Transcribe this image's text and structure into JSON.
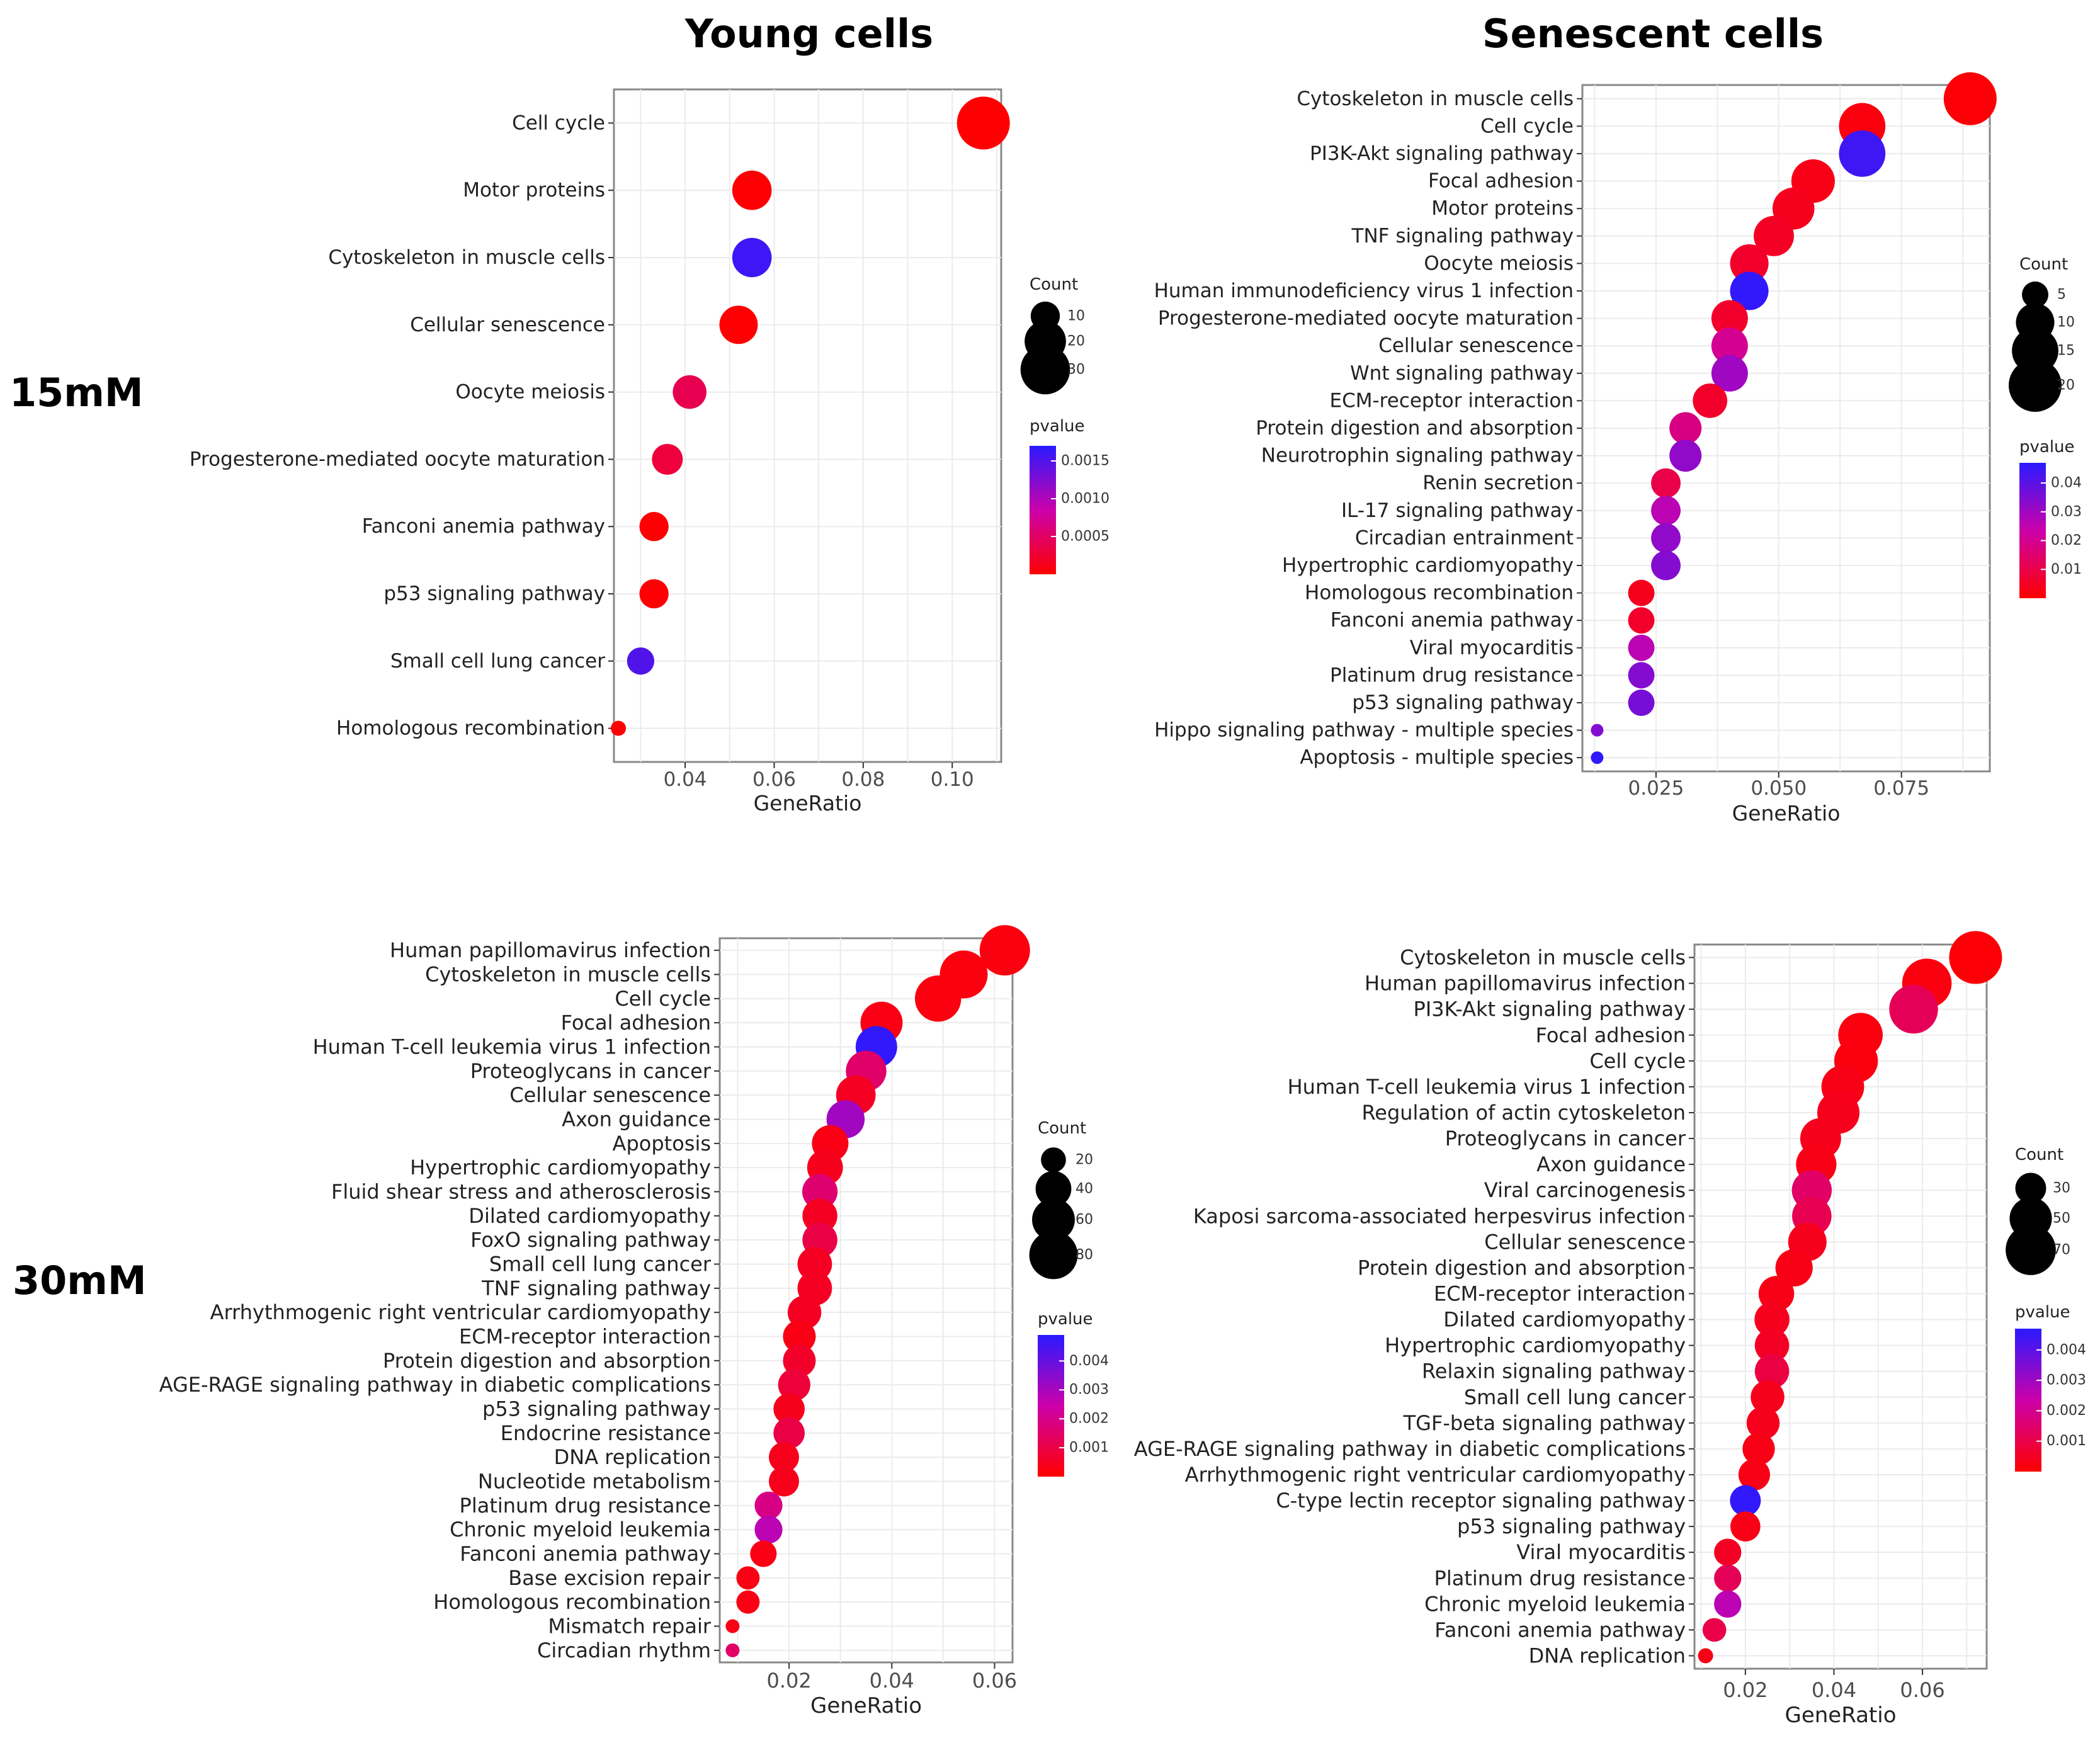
{
  "figure": {
    "col_titles": [
      "Young cells",
      "Senescent cells"
    ],
    "row_labels": [
      "15mM",
      "30mM"
    ]
  },
  "colors": {
    "low": "#ff0000",
    "mid": "#cc00aa",
    "high": "#2a1aff",
    "grid": "#ebebeb",
    "axis": "#888888"
  },
  "chart_data": [
    {
      "id": "young-15mM",
      "type": "scatter",
      "panel": "Young cells 15mM",
      "xlabel": "GeneRatio",
      "ylabel": "",
      "xlim": [
        0.024,
        0.111
      ],
      "xticks": [
        0.04,
        0.06,
        0.08,
        0.1
      ],
      "xtick_labels": [
        "0.04",
        "0.06",
        "0.08",
        "0.10"
      ],
      "pathways": [
        "Cell cycle",
        "Motor proteins",
        "Cytoskeleton in muscle cells",
        "Cellular senescence",
        "Oocyte meiosis",
        "Progesterone-mediated oocyte maturation",
        "Fanconi anemia pathway",
        "p53 signaling pathway",
        "Small cell lung cancer",
        "Homologous recombination"
      ],
      "gene_ratio": [
        0.107,
        0.055,
        0.055,
        0.052,
        0.041,
        0.036,
        0.033,
        0.033,
        0.03,
        0.025
      ],
      "count": [
        35,
        18,
        18,
        17,
        13,
        11,
        10,
        10,
        9,
        6
      ],
      "pvalue": [
        1e-05,
        2e-05,
        0.0016,
        1e-05,
        0.0004,
        0.0003,
        2e-05,
        2e-05,
        0.0015,
        1e-05
      ],
      "count_legend": {
        "title": "Count",
        "breaks": [
          10,
          20,
          30
        ],
        "labels": [
          "10",
          "20",
          "30"
        ]
      },
      "pvalue_legend": {
        "title": "pvalue",
        "range": [
          0,
          0.0017
        ],
        "breaks": [
          0.0015,
          0.001,
          0.0005
        ],
        "labels": [
          "0.0015",
          "0.0010",
          "0.0005"
        ]
      }
    },
    {
      "id": "senescent-15mM",
      "type": "scatter",
      "panel": "Senescent cells 15mM",
      "xlabel": "GeneRatio",
      "ylabel": "",
      "xlim": [
        0.01,
        0.093
      ],
      "xticks": [
        0.025,
        0.05,
        0.075
      ],
      "xtick_labels": [
        "0.025",
        "0.050",
        "0.075"
      ],
      "pathways": [
        "Cytoskeleton in muscle cells",
        "Cell cycle",
        "PI3K-Akt signaling pathway",
        "Focal adhesion",
        "Motor proteins",
        "TNF signaling pathway",
        "Oocyte meiosis",
        "Human immunodeficiency virus 1 infection",
        "Progesterone-mediated oocyte maturation",
        "Cellular senescence",
        "Wnt signaling pathway",
        "ECM-receptor interaction",
        "Protein digestion and absorption",
        "Neurotrophin signaling pathway",
        "Renin secretion",
        "IL-17 signaling pathway",
        "Circadian entrainment",
        "Hypertrophic cardiomyopathy",
        "Homologous recombination",
        "Fanconi anemia pathway",
        "Viral myocarditis",
        "Platinum drug resistance",
        "p53 signaling pathway",
        "Hippo signaling pathway - multiple species",
        "Apoptosis - multiple species"
      ],
      "gene_ratio": [
        0.089,
        0.067,
        0.067,
        0.057,
        0.053,
        0.049,
        0.044,
        0.044,
        0.04,
        0.04,
        0.04,
        0.036,
        0.031,
        0.031,
        0.027,
        0.027,
        0.027,
        0.027,
        0.022,
        0.022,
        0.022,
        0.022,
        0.022,
        0.013,
        0.013
      ],
      "count": [
        20,
        15,
        15,
        13,
        12,
        11,
        10,
        10,
        9,
        9,
        9,
        8,
        7,
        7,
        6,
        6,
        6,
        6,
        5,
        5,
        5,
        5,
        5,
        3,
        3
      ],
      "pvalue": [
        0.001,
        0.002,
        0.044,
        0.003,
        0.004,
        0.005,
        0.006,
        0.046,
        0.006,
        0.02,
        0.03,
        0.006,
        0.018,
        0.032,
        0.01,
        0.026,
        0.032,
        0.034,
        0.004,
        0.006,
        0.026,
        0.034,
        0.036,
        0.034,
        0.046
      ],
      "count_legend": {
        "title": "Count",
        "breaks": [
          5,
          10,
          15,
          20
        ],
        "labels": [
          "5",
          "10",
          "15",
          "20"
        ]
      },
      "pvalue_legend": {
        "title": "pvalue",
        "range": [
          0,
          0.047
        ],
        "breaks": [
          0.04,
          0.03,
          0.02,
          0.01
        ],
        "labels": [
          "0.04",
          "0.03",
          "0.02",
          "0.01"
        ]
      }
    },
    {
      "id": "young-30mM",
      "type": "scatter",
      "panel": "Young cells 30mM",
      "xlabel": "GeneRatio",
      "ylabel": "",
      "xlim": [
        0.0065,
        0.0635
      ],
      "xticks": [
        0.02,
        0.04,
        0.06
      ],
      "xtick_labels": [
        "0.02",
        "0.04",
        "0.06"
      ],
      "pathways": [
        "Human papillomavirus infection",
        "Cytoskeleton in muscle cells",
        "Cell cycle",
        "Focal adhesion",
        "Human T-cell leukemia virus 1 infection",
        "Proteoglycans in cancer",
        "Cellular senescence",
        "Axon guidance",
        "Apoptosis",
        "Hypertrophic cardiomyopathy",
        "Fluid shear stress and atherosclerosis",
        "Dilated cardiomyopathy",
        "FoxO signaling pathway",
        "Small cell lung cancer",
        "TNF signaling pathway",
        "Arrhythmogenic right ventricular cardiomyopathy",
        "ECM-receptor interaction",
        "Protein digestion and absorption",
        "AGE-RAGE signaling pathway in diabetic complications",
        "p53 signaling pathway",
        "Endocrine resistance",
        "DNA replication",
        "Nucleotide metabolism",
        "Platinum drug resistance",
        "Chronic myeloid leukemia",
        "Fanconi anemia pathway",
        "Base excision repair",
        "Homologous recombination",
        "Mismatch repair",
        "Circadian rhythm"
      ],
      "gene_ratio": [
        0.062,
        0.054,
        0.049,
        0.038,
        0.037,
        0.035,
        0.033,
        0.031,
        0.028,
        0.027,
        0.026,
        0.026,
        0.026,
        0.025,
        0.025,
        0.023,
        0.022,
        0.022,
        0.021,
        0.02,
        0.02,
        0.019,
        0.019,
        0.016,
        0.016,
        0.015,
        0.012,
        0.012,
        0.009,
        0.009
      ],
      "count": [
        88,
        78,
        72,
        58,
        56,
        53,
        50,
        46,
        42,
        40,
        39,
        38,
        38,
        37,
        37,
        35,
        33,
        33,
        32,
        30,
        30,
        28,
        28,
        24,
        24,
        22,
        18,
        18,
        13,
        13
      ],
      "pvalue": [
        0.0002,
        0.0002,
        0.0002,
        0.0003,
        0.0048,
        0.0015,
        0.0005,
        0.0031,
        0.0003,
        0.0004,
        0.0016,
        0.0005,
        0.001,
        0.0005,
        0.0005,
        0.0005,
        0.0003,
        0.0006,
        0.0008,
        0.0004,
        0.001,
        0.0004,
        0.0004,
        0.0019,
        0.0027,
        0.0003,
        0.0003,
        0.0003,
        0.0003,
        0.0015
      ],
      "count_legend": {
        "title": "Count",
        "breaks": [
          20,
          40,
          60,
          80
        ],
        "labels": [
          "20",
          "40",
          "60",
          "80"
        ]
      },
      "pvalue_legend": {
        "title": "pvalue",
        "range": [
          0,
          0.0049
        ],
        "breaks": [
          0.004,
          0.003,
          0.002,
          0.001
        ],
        "labels": [
          "0.004",
          "0.003",
          "0.002",
          "0.001"
        ]
      }
    },
    {
      "id": "senescent-30mM",
      "type": "scatter",
      "panel": "Senescent cells 30mM",
      "xlabel": "GeneRatio",
      "ylabel": "",
      "xlim": [
        0.0085,
        0.0745
      ],
      "xticks": [
        0.02,
        0.04,
        0.06
      ],
      "xtick_labels": [
        "0.02",
        "0.04",
        "0.06"
      ],
      "pathways": [
        "Cytoskeleton in muscle cells",
        "Human papillomavirus infection",
        "PI3K-Akt signaling pathway",
        "Focal adhesion",
        "Cell cycle",
        "Human T-cell leukemia virus 1 infection",
        "Regulation of actin cytoskeleton",
        "Proteoglycans in cancer",
        "Axon guidance",
        "Viral carcinogenesis",
        "Kaposi sarcoma-associated herpesvirus infection",
        "Cellular senescence",
        "Protein digestion and absorption",
        "ECM-receptor interaction",
        "Dilated cardiomyopathy",
        "Hypertrophic cardiomyopathy",
        "Relaxin signaling pathway",
        "Small cell lung cancer",
        "TGF-beta signaling pathway",
        "AGE-RAGE signaling pathway in diabetic complications",
        "Arrhythmogenic right ventricular cardiomyopathy",
        "C-type lectin receptor signaling pathway",
        "p53 signaling pathway",
        "Viral myocarditis",
        "Platinum drug resistance",
        "Chronic myeloid leukemia",
        "Fanconi anemia pathway",
        "DNA replication"
      ],
      "gene_ratio": [
        0.072,
        0.061,
        0.058,
        0.046,
        0.045,
        0.042,
        0.041,
        0.037,
        0.036,
        0.035,
        0.035,
        0.034,
        0.031,
        0.027,
        0.026,
        0.026,
        0.026,
        0.025,
        0.024,
        0.023,
        0.022,
        0.02,
        0.02,
        0.016,
        0.016,
        0.016,
        0.013,
        0.011
      ],
      "count": [
        78,
        68,
        66,
        55,
        53,
        51,
        50,
        47,
        46,
        45,
        44,
        42,
        40,
        37,
        36,
        35,
        35,
        34,
        33,
        32,
        31,
        30,
        29,
        26,
        26,
        26,
        23,
        20
      ],
      "pvalue": [
        0.0001,
        0.0002,
        0.0012,
        0.0002,
        0.0002,
        0.0003,
        0.0004,
        0.0004,
        0.0003,
        0.0014,
        0.0011,
        0.0004,
        0.0003,
        0.0003,
        0.0004,
        0.0005,
        0.0009,
        0.0004,
        0.0004,
        0.0003,
        0.0003,
        0.0046,
        0.0003,
        0.0005,
        0.0012,
        0.0026,
        0.001,
        0.0003
      ],
      "count_legend": {
        "title": "Count",
        "breaks": [
          30,
          50,
          70
        ],
        "labels": [
          "30",
          "50",
          "70"
        ]
      },
      "pvalue_legend": {
        "title": "pvalue",
        "range": [
          0,
          0.0047
        ],
        "breaks": [
          0.004,
          0.003,
          0.002,
          0.001
        ],
        "labels": [
          "0.004",
          "0.003",
          "0.002",
          "0.001"
        ]
      }
    }
  ]
}
